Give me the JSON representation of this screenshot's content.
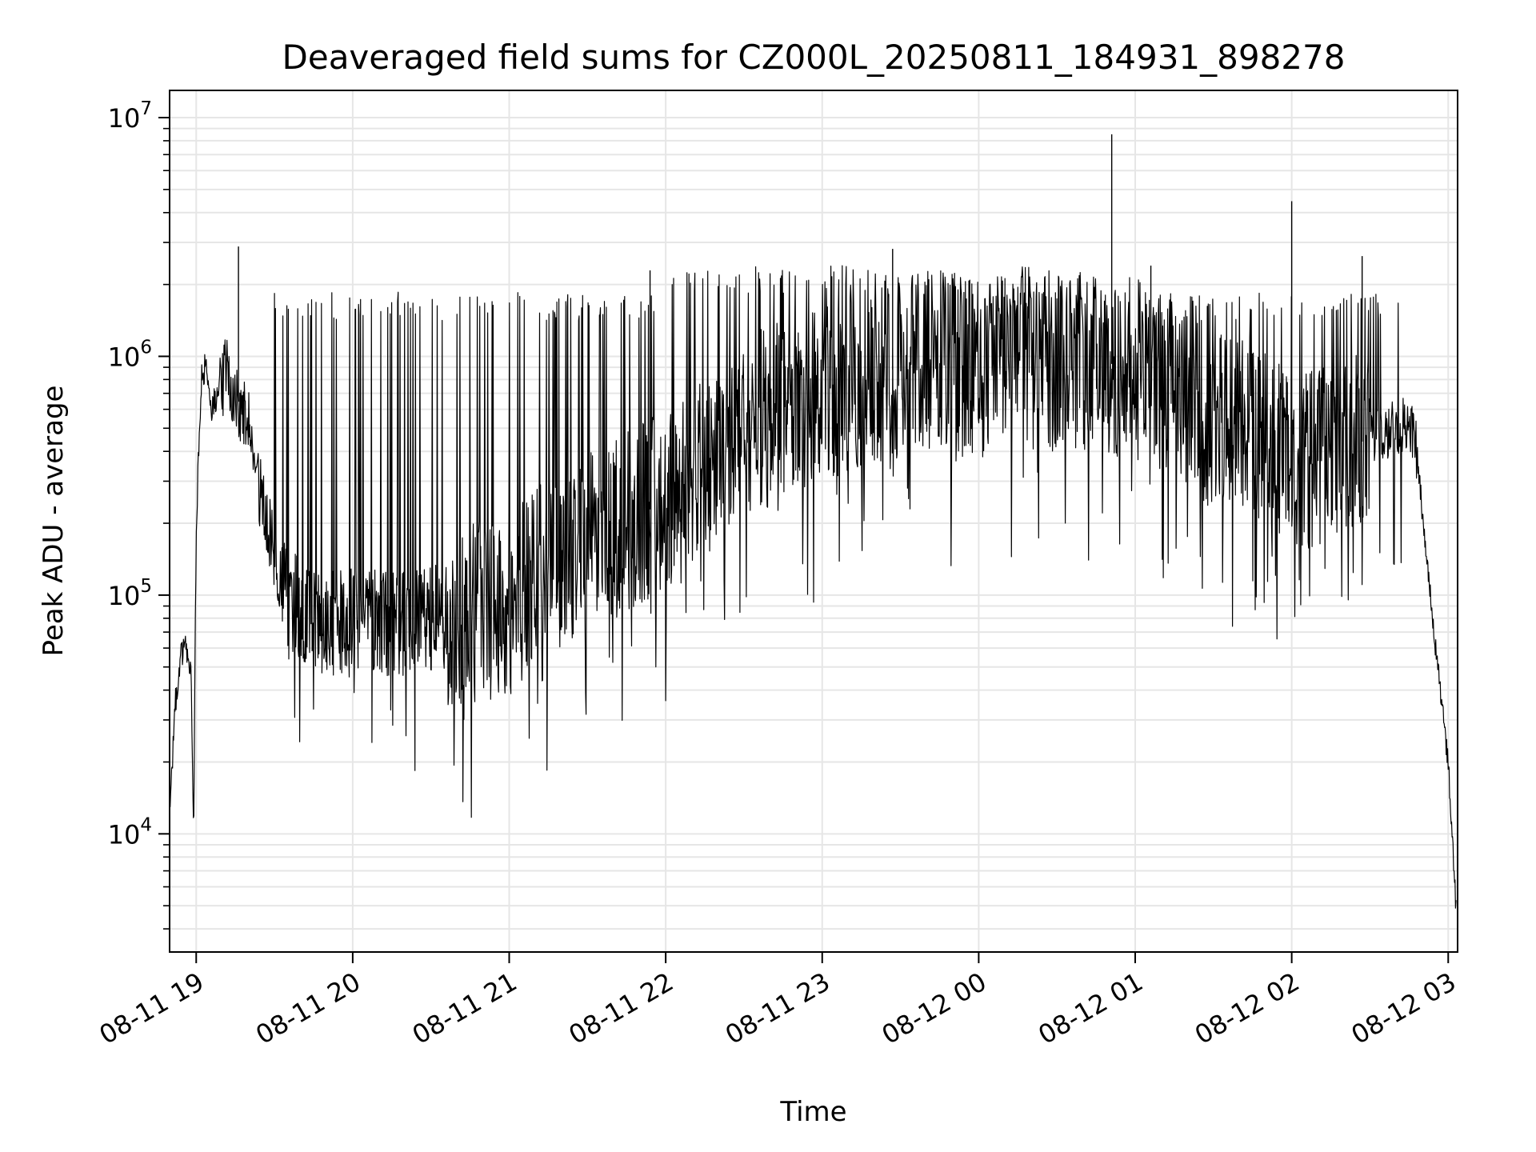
{
  "chart_data": {
    "type": "line",
    "title": "Deaveraged field sums for CZ000L_20250811_184931_898278",
    "xlabel": "Time",
    "ylabel": "Peak ADU - average",
    "yscale": "log",
    "ylim": [
      3200,
      13000000
    ],
    "xlim_hours": [
      -0.17,
      8.06
    ],
    "grid": true,
    "line_color": "#000000",
    "grid_color": "#e6e6e6",
    "x_ticks": [
      "08-11 19",
      "08-11 20",
      "08-11 21",
      "08-11 22",
      "08-11 23",
      "08-12 00",
      "08-12 01",
      "08-12 02",
      "08-12 03"
    ],
    "y_ticks": [
      {
        "base": "10",
        "exp": "4",
        "value": 10000
      },
      {
        "base": "10",
        "exp": "5",
        "value": 100000
      },
      {
        "base": "10",
        "exp": "6",
        "value": 1000000
      },
      {
        "base": "10",
        "exp": "7",
        "value": 10000000
      }
    ],
    "series": [
      {
        "x": [
          "08-11 18:50",
          "08-11 18:52",
          "08-11 18:54",
          "08-11 18:56",
          "08-11 18:58",
          "08-11 18:59",
          "08-11 19:00",
          "08-11 19:02",
          "08-11 19:04",
          "08-11 19:06",
          "08-11 19:08",
          "08-11 19:10",
          "08-11 19:12",
          "08-11 19:15",
          "08-11 19:20",
          "08-11 19:25",
          "08-11 19:30",
          "08-11 19:35",
          "08-11 19:40",
          "08-11 19:50",
          "08-11 20:00",
          "08-11 20:15",
          "08-11 20:30",
          "08-11 20:45",
          "08-11 21:00",
          "08-11 21:15",
          "08-11 21:30",
          "08-11 21:45",
          "08-11 22:00",
          "08-11 22:15",
          "08-11 22:30",
          "08-11 22:45",
          "08-11 23:00",
          "08-11 23:15",
          "08-11 23:30",
          "08-11 23:45",
          "08-12 00:00",
          "08-12 00:15",
          "08-12 00:30",
          "08-12 00:45",
          "08-12 01:00",
          "08-12 01:15",
          "08-12 01:30",
          "08-12 01:45",
          "08-12 02:00",
          "08-12 02:15",
          "08-12 02:30",
          "08-12 02:40",
          "08-12 02:45",
          "08-12 02:48",
          "08-12 02:52",
          "08-12 02:56",
          "08-12 03:00",
          "08-12 03:03"
        ],
        "y": [
          13000,
          35000,
          55000,
          60000,
          50000,
          10000,
          200000,
          800000,
          950000,
          600000,
          700000,
          800000,
          900000,
          700000,
          500000,
          250000,
          150000,
          100000,
          85000,
          75000,
          80000,
          75000,
          80000,
          85000,
          90000,
          130000,
          170000,
          200000,
          250000,
          350000,
          500000,
          600000,
          700000,
          800000,
          900000,
          950000,
          900000,
          1000000,
          950000,
          950000,
          900000,
          700000,
          550000,
          500000,
          350000,
          400000,
          450000,
          500000,
          550000,
          400000,
          130000,
          50000,
          20000,
          5000
        ]
      }
    ]
  }
}
